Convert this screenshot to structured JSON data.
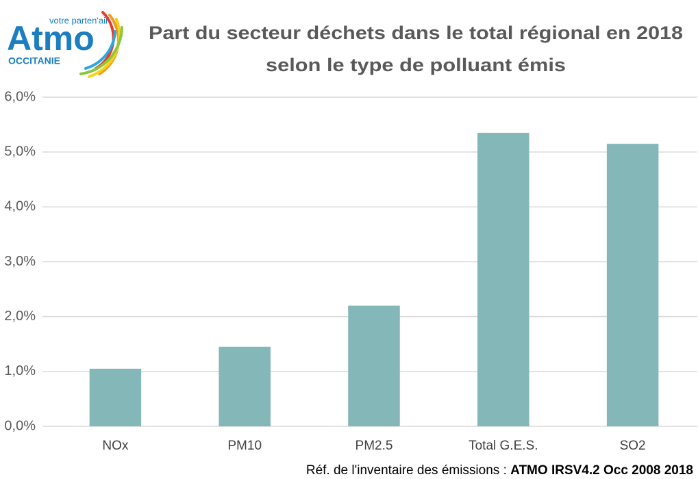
{
  "chart_data": {
    "type": "bar",
    "title": [
      "Part du secteur déchets dans le total régional en 2018",
      "selon le type de polluant émis"
    ],
    "logo_tagline": "votre parten'air",
    "logo_text": "Atmo",
    "logo_region": "OCCITANIE",
    "categories": [
      "NOx",
      "PM10",
      "PM2.5",
      "Total G.E.S.",
      "SO2"
    ],
    "values": [
      1.05,
      1.45,
      2.2,
      5.35,
      5.15
    ],
    "color": "#84b7b8",
    "ylim": [
      0,
      6
    ],
    "yticks": [
      {
        "value": 0,
        "label": "0,0%"
      },
      {
        "value": 1,
        "label": "1,0%"
      },
      {
        "value": 2,
        "label": "2,0%"
      },
      {
        "value": 3,
        "label": "3,0%"
      },
      {
        "value": 4,
        "label": "4,0%"
      },
      {
        "value": 5,
        "label": "5,0%"
      },
      {
        "value": 6,
        "label": "6,0%"
      }
    ],
    "grid": true,
    "source_label": "Réf. de l'inventaire des émissions : ",
    "source": "ATMO IRSV4.2 Occ 2008 2018"
  }
}
